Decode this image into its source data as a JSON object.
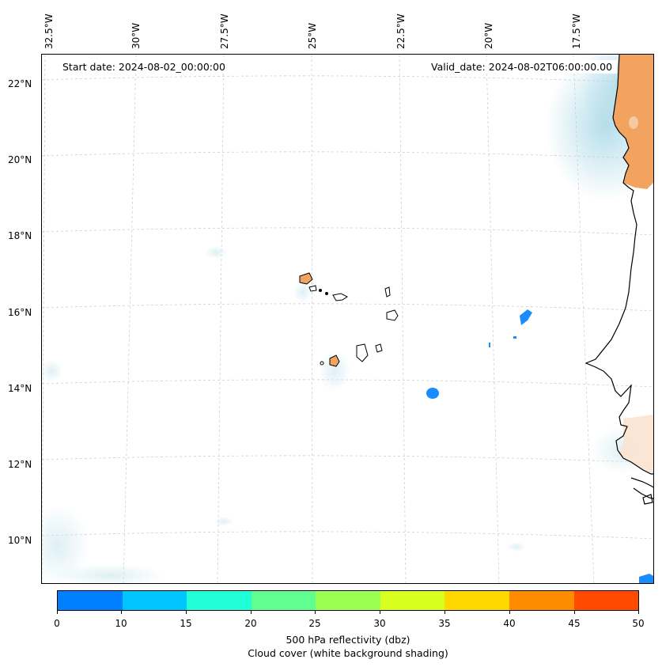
{
  "map": {
    "start_date": "Start date: 2024-08-02_00:00:00",
    "valid_date": "Valid_date: 2024-08-02T06:00:00.00",
    "longitude_labels": [
      "32.5°W",
      "30°W",
      "27.5°W",
      "25°W",
      "22.5°W",
      "20°W",
      "17.5°W"
    ],
    "latitude_labels": [
      "22°N",
      "20°N",
      "18°N",
      "16°N",
      "14°N",
      "12°N",
      "10°N"
    ]
  },
  "colorbar": {
    "ticks": [
      "0",
      "10",
      "15",
      "20",
      "25",
      "30",
      "35",
      "40",
      "45",
      "50"
    ],
    "colors": [
      "#0080ff",
      "#00c5ff",
      "#20ffd8",
      "#60ff90",
      "#9aff50",
      "#d8ff20",
      "#ffd800",
      "#ff8c00",
      "#ff4a00"
    ],
    "title": "500 hPa reflectivity (dbz)",
    "subtitle": "Cloud cover (white background shading)"
  },
  "colors": {
    "land": "#f3a360",
    "cloud": "#a8d8e6",
    "coast": "#000000",
    "grid": "#bbbbbb"
  }
}
